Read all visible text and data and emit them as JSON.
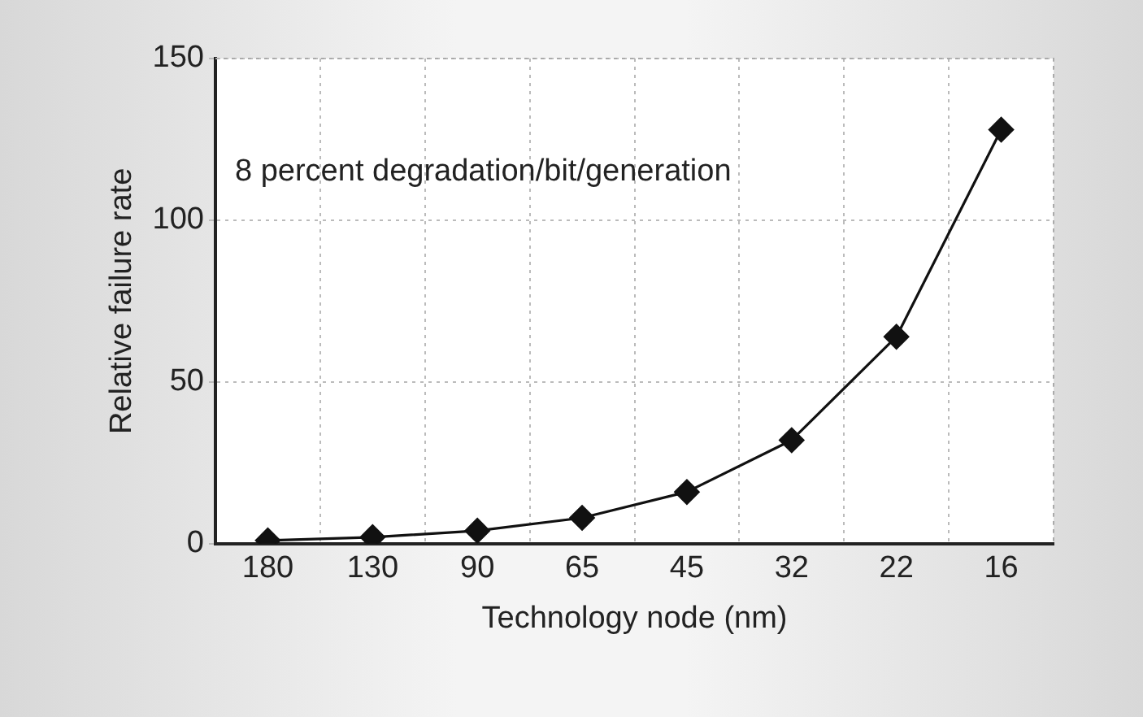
{
  "chart_data": {
    "type": "line",
    "xlabel": "Technology node (nm)",
    "ylabel": "Relative failure rate",
    "categories": [
      "180",
      "130",
      "90",
      "65",
      "45",
      "32",
      "22",
      "16"
    ],
    "series": [
      {
        "color": "#111111",
        "values": [
          1,
          2,
          4,
          8,
          16,
          32,
          64,
          128
        ]
      }
    ],
    "ylim": [
      0,
      150
    ],
    "yticks": [
      0,
      50,
      100,
      150
    ],
    "grid": true,
    "legend": false,
    "marker": "diamond",
    "line_style": "solid",
    "annotations": [
      "8 percent degradation/bit/generation"
    ]
  }
}
